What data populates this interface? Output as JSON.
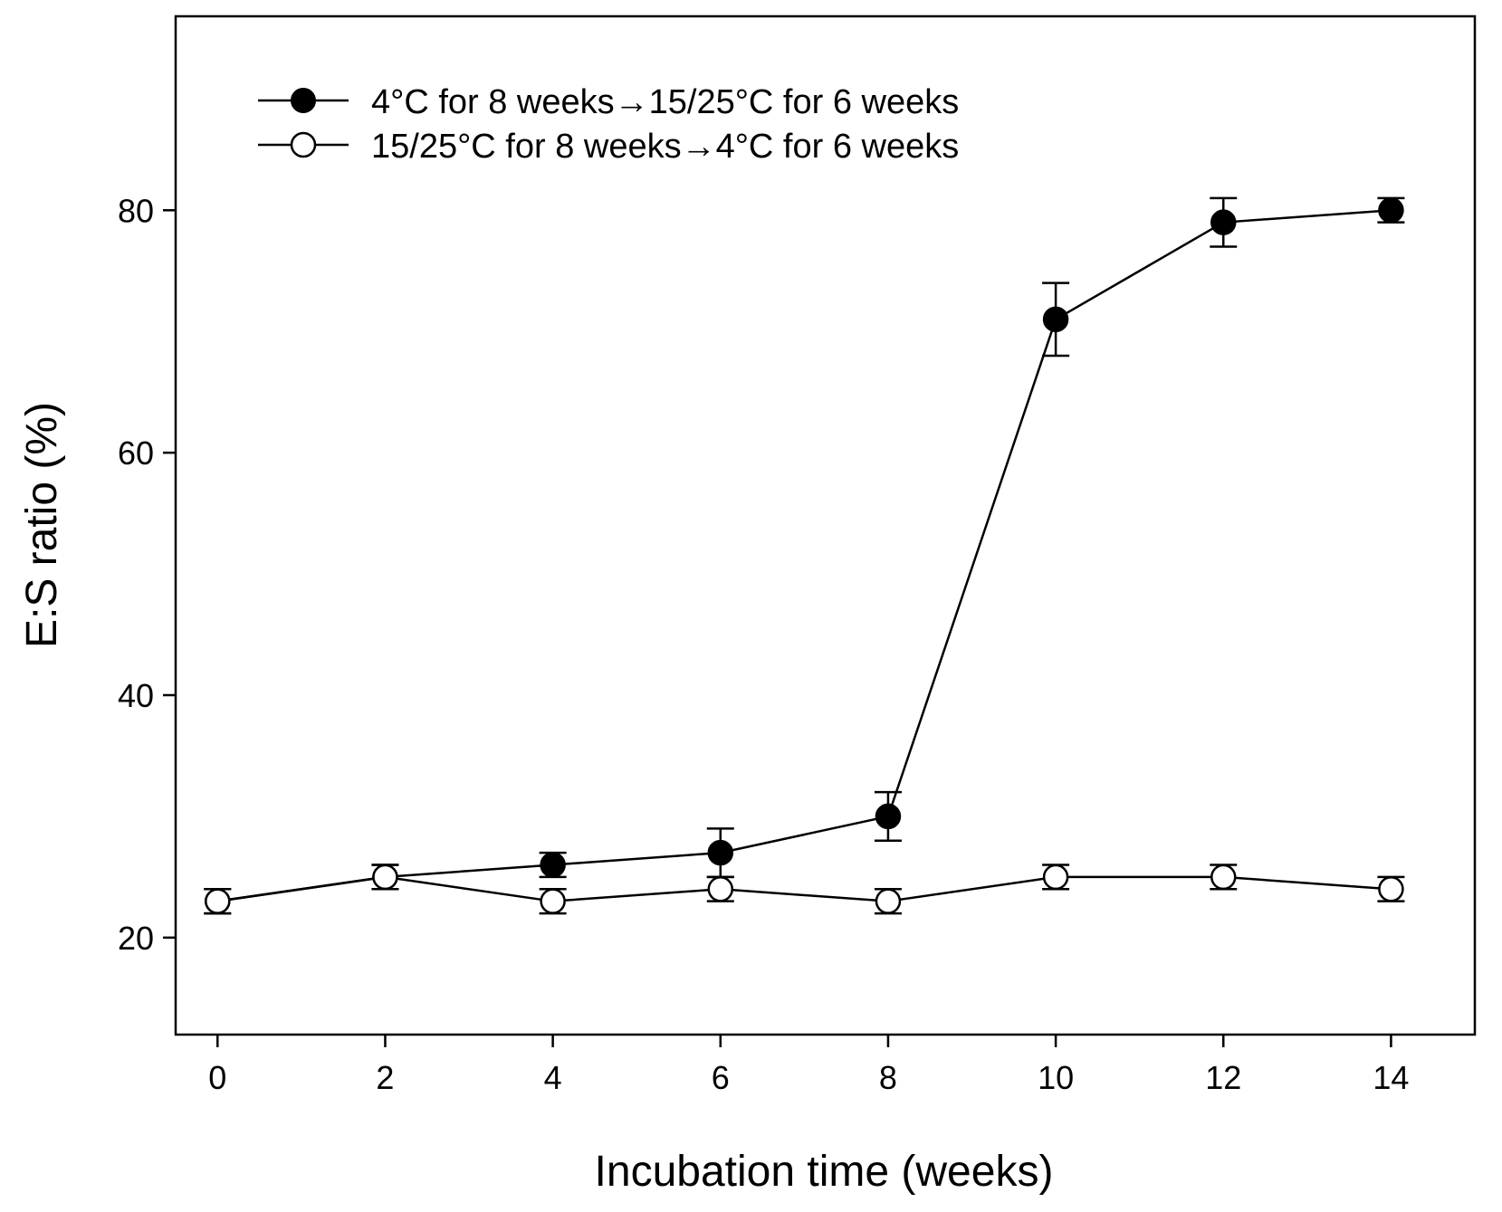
{
  "chart_data": {
    "type": "line",
    "xlabel": "Incubation time (weeks)",
    "ylabel": "E:S ratio (%)",
    "xlim": [
      -0.5,
      15
    ],
    "ylim": [
      12,
      96
    ],
    "xticks": [
      0,
      2,
      4,
      6,
      8,
      10,
      12,
      14
    ],
    "yticks": [
      20,
      40,
      60,
      80
    ],
    "legend_position": "top-left",
    "series": [
      {
        "name": "4°C for 8 weeks→15/25°C for 6 weeks",
        "marker": "filled-circle",
        "x": [
          0,
          2,
          4,
          6,
          8,
          10,
          12,
          14
        ],
        "y": [
          23,
          25,
          26,
          27,
          30,
          71,
          79,
          80
        ],
        "err": [
          1,
          1,
          1,
          2,
          2,
          3,
          2,
          1
        ]
      },
      {
        "name": "15/25°C for 8 weeks→4°C for 6 weeks",
        "marker": "open-circle",
        "x": [
          0,
          2,
          4,
          6,
          8,
          10,
          12,
          14
        ],
        "y": [
          23,
          25,
          23,
          24,
          23,
          25,
          25,
          24
        ],
        "err": [
          1,
          1,
          1,
          1,
          1,
          1,
          1,
          1
        ]
      }
    ]
  }
}
